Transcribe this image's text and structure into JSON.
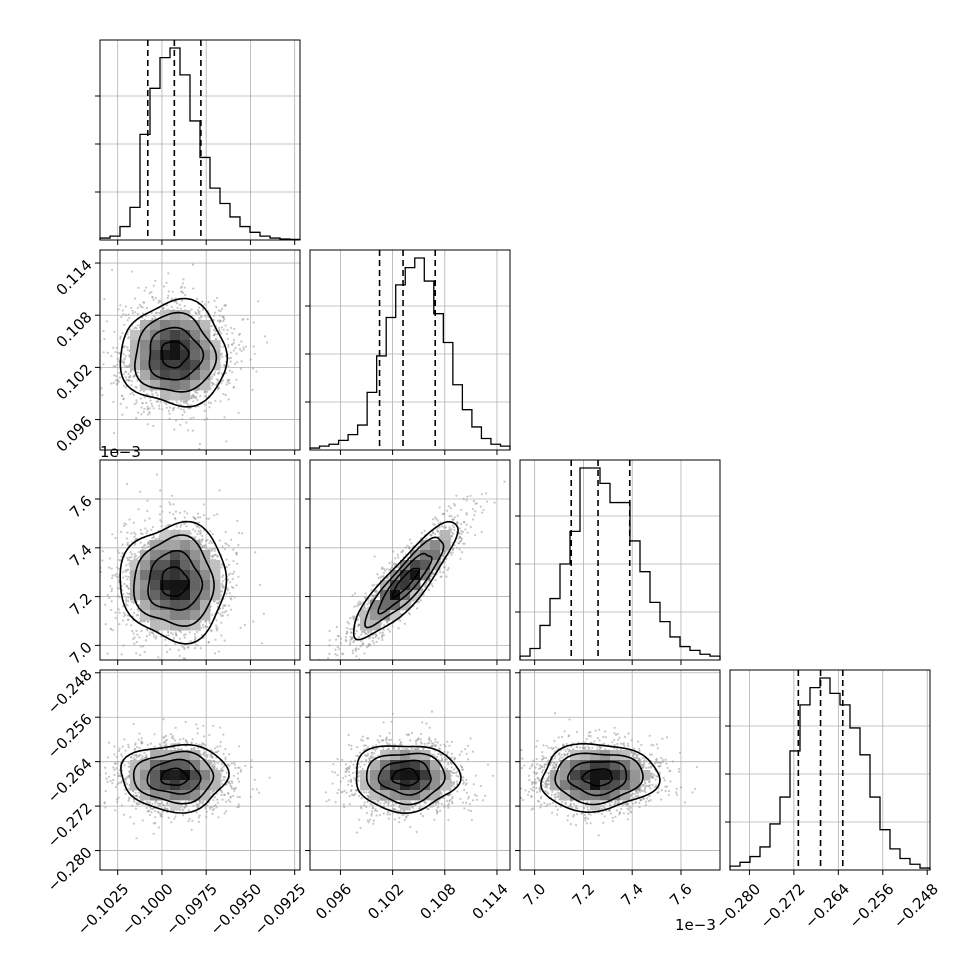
{
  "chart_data": {
    "type": "corner",
    "grid": true,
    "colors": {
      "hist": "#000000",
      "scatter": "#999999",
      "density": "#000000",
      "quantile": "#000000"
    },
    "params": [
      {
        "range": [
          -0.1035,
          -0.0922
        ],
        "ticks": [
          -0.1025,
          -0.1,
          -0.0975,
          -0.095,
          -0.0925
        ],
        "tick_labels": [
          "−0.1025",
          "−0.1000",
          "−0.0975",
          "−0.0950",
          "−0.0925"
        ],
        "offset_text": "",
        "quantiles": [
          -0.1008,
          -0.0993,
          -0.0978
        ],
        "hist": [
          0.01,
          0.02,
          0.07,
          0.17,
          0.55,
          0.79,
          0.95,
          1.0,
          0.86,
          0.62,
          0.43,
          0.27,
          0.19,
          0.12,
          0.07,
          0.04,
          0.02,
          0.01,
          0.005,
          0.003
        ],
        "mean": -0.0993,
        "sd": 0.0015
      },
      {
        "range": [
          0.0925,
          0.1155
        ],
        "ticks": [
          0.096,
          0.102,
          0.108,
          0.114
        ],
        "tick_labels": [
          "0.096",
          "0.102",
          "0.108",
          "0.114"
        ],
        "offset_text": "",
        "quantiles": [
          0.1005,
          0.1032,
          0.1069
        ],
        "hist": [
          0.01,
          0.02,
          0.03,
          0.05,
          0.08,
          0.13,
          0.3,
          0.49,
          0.69,
          0.86,
          0.95,
          1.0,
          0.88,
          0.71,
          0.56,
          0.34,
          0.21,
          0.12,
          0.06,
          0.03,
          0.02
        ],
        "mean": 0.1035,
        "sd": 0.003
      },
      {
        "range": [
          6.94,
          7.76
        ],
        "ticks": [
          7.0,
          7.2,
          7.4,
          7.6
        ],
        "tick_labels": [
          "7.0",
          "7.2",
          "7.4",
          "7.6"
        ],
        "offset_text": "1e−3",
        "quantiles": [
          7.15,
          7.26,
          7.39
        ],
        "hist": [
          0.02,
          0.06,
          0.18,
          0.32,
          0.5,
          0.67,
          1.0,
          1.0,
          0.92,
          0.82,
          0.82,
          0.62,
          0.46,
          0.3,
          0.2,
          0.12,
          0.07,
          0.05,
          0.03,
          0.02
        ],
        "mean": 7.26,
        "sd": 0.12
      },
      {
        "range": [
          -0.2835,
          -0.2475
        ],
        "ticks": [
          -0.28,
          -0.272,
          -0.264,
          -0.256,
          -0.248
        ],
        "tick_labels": [
          "−0.280",
          "−0.272",
          "−0.264",
          "−0.256",
          "−0.248"
        ],
        "offset_text": "",
        "quantiles": [
          -0.2712,
          -0.2672,
          -0.2632
        ],
        "hist": [
          0.02,
          0.04,
          0.07,
          0.12,
          0.24,
          0.38,
          0.62,
          0.86,
          0.95,
          1.0,
          0.92,
          0.86,
          0.74,
          0.6,
          0.38,
          0.21,
          0.11,
          0.06,
          0.03,
          0.01
        ],
        "mean": -0.2668,
        "sd": 0.003
      }
    ],
    "correlations": [
      {
        "pair": [
          1,
          0
        ],
        "rho": 0.0
      },
      {
        "pair": [
          2,
          0
        ],
        "rho": 0.0
      },
      {
        "pair": [
          2,
          1
        ],
        "rho": 0.88
      },
      {
        "pair": [
          3,
          0
        ],
        "rho": 0.0
      },
      {
        "pair": [
          3,
          1
        ],
        "rho": 0.0
      },
      {
        "pair": [
          3,
          2
        ],
        "rho": 0.05
      }
    ],
    "diag_yticks": [
      0.25,
      0.5,
      0.75
    ]
  }
}
